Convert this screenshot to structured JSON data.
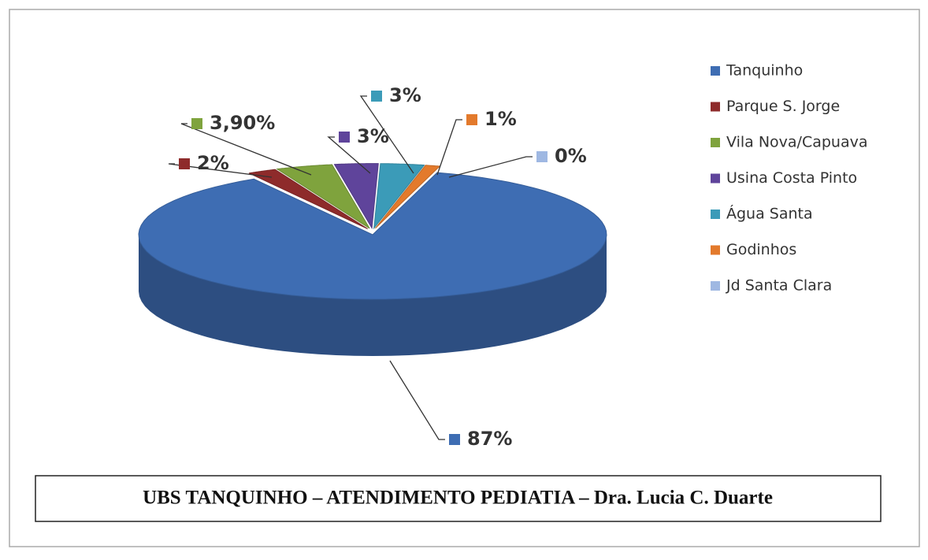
{
  "chart_data": {
    "type": "pie",
    "title": "UBS TANQUINHO – ATENDIMENTO PEDIATIA – Dra. Lucia C. Duarte",
    "categories": [
      "Tanquinho",
      "Parque S. Jorge",
      "Vila Nova/Capuava",
      "Usina Costa Pinto",
      "Água Santa",
      "Godinhos",
      "Jd Santa Clara"
    ],
    "values": [
      87,
      2,
      3.9,
      3,
      3,
      1,
      0
    ],
    "value_labels": [
      "87%",
      "2%",
      "3,90%",
      "3%",
      "3%",
      "1%",
      "0%"
    ],
    "colors": [
      "#3e6db3",
      "#8e2b2b",
      "#7fa33d",
      "#5f449b",
      "#3b9bb8",
      "#e37a2c",
      "#9fb8e2"
    ],
    "legend": "right"
  }
}
